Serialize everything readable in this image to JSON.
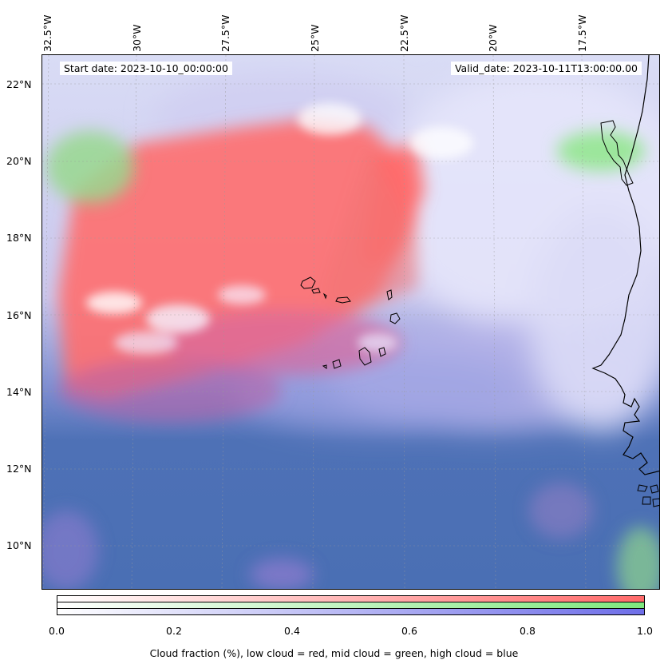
{
  "map": {
    "start_label": "Start date: 2023-10-10_00:00:00",
    "valid_label": "Valid_date: 2023-10-11T13:00:00.00",
    "lon_labels": [
      "32.5°W",
      "30°W",
      "27.5°W",
      "25°W",
      "22.5°W",
      "20°W",
      "17.5°W"
    ],
    "lat_labels": [
      "22°N",
      "20°N",
      "18°N",
      "16°N",
      "14°N",
      "12°N",
      "10°N"
    ],
    "colors": {
      "low_cloud": "#ff6a6a",
      "mid_cloud": "#7ee87e",
      "high_cloud": "#6e6ee8",
      "ocean_clear": "#4a6fb4"
    }
  },
  "colorbar": {
    "ticks": [
      "0.0",
      "0.2",
      "0.4",
      "0.6",
      "0.8",
      "1.0"
    ],
    "caption": "Cloud fraction (%), low cloud = red, mid cloud = green, high cloud = blue"
  }
}
